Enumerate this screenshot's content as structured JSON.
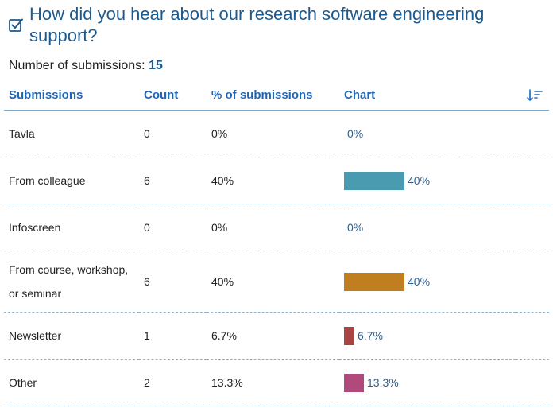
{
  "question": {
    "title": "How did you hear about our research software engineering support?",
    "submissions_label": "Number of submissions:",
    "submissions_count": "15",
    "icon": "checkbox-check-icon"
  },
  "table": {
    "headers": {
      "submissions": "Submissions",
      "count": "Count",
      "percent": "% of submissions",
      "chart": "Chart",
      "sort_icon": "sort-descending-icon"
    },
    "rows": [
      {
        "label": "Tavla",
        "count": "0",
        "percent": "0%",
        "fraction": 0,
        "color": "#4a9bb0"
      },
      {
        "label": "From colleague",
        "count": "6",
        "percent": "40%",
        "fraction": 0.4,
        "color": "#4a9bb0"
      },
      {
        "label": "Infoscreen",
        "count": "0",
        "percent": "0%",
        "fraction": 0,
        "color": "#4a9bb0"
      },
      {
        "label": "From course, workshop, or seminar",
        "count": "6",
        "percent": "40%",
        "fraction": 0.4,
        "color": "#c07f1f"
      },
      {
        "label": "Newsletter",
        "count": "1",
        "percent": "6.7%",
        "fraction": 0.067,
        "color": "#a84444"
      },
      {
        "label": "Other",
        "count": "2",
        "percent": "13.3%",
        "fraction": 0.133,
        "color": "#b04a7c"
      }
    ]
  }
}
